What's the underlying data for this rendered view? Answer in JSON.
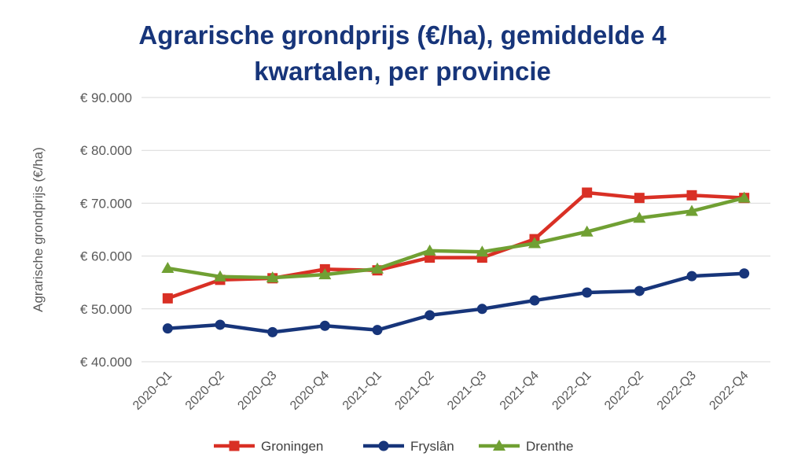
{
  "chart_data": {
    "type": "line",
    "title_line1": "Agrarische grondprijs (€/ha), gemiddelde 4",
    "title_line2": "kwartalen, per provincie",
    "ylabel": "Agrarische grondprijs (€/ha)",
    "xlabel": "",
    "categories": [
      "2020-Q1",
      "2020-Q2",
      "2020-Q3",
      "2020-Q4",
      "2021-Q1",
      "2021-Q2",
      "2021-Q3",
      "2021-Q4",
      "2022-Q1",
      "2022-Q2",
      "2022-Q3",
      "2022-Q4"
    ],
    "ylim": [
      40000,
      90000
    ],
    "yticks": [
      40000,
      50000,
      60000,
      70000,
      80000,
      90000
    ],
    "ytick_labels": [
      "€ 40.000",
      "€ 50.000",
      "€ 60.000",
      "€ 70.000",
      "€ 80.000",
      "€ 90.000"
    ],
    "grid": true,
    "legend_position": "bottom",
    "series": [
      {
        "name": "Groningen",
        "color": "#d93025",
        "marker": "square",
        "values": [
          52000,
          55500,
          55800,
          57500,
          57300,
          59700,
          59700,
          63200,
          72000,
          71000,
          71500,
          71000
        ]
      },
      {
        "name": "Fryslân",
        "color": "#17357a",
        "marker": "circle",
        "values": [
          46300,
          47000,
          45600,
          46800,
          46000,
          48800,
          50000,
          51600,
          53100,
          53400,
          56200,
          56700
        ]
      },
      {
        "name": "Drenthe",
        "color": "#70a033",
        "marker": "triangle",
        "values": [
          57700,
          56100,
          55900,
          56500,
          57600,
          61000,
          60800,
          62400,
          64600,
          67200,
          68500,
          71000
        ]
      }
    ]
  }
}
